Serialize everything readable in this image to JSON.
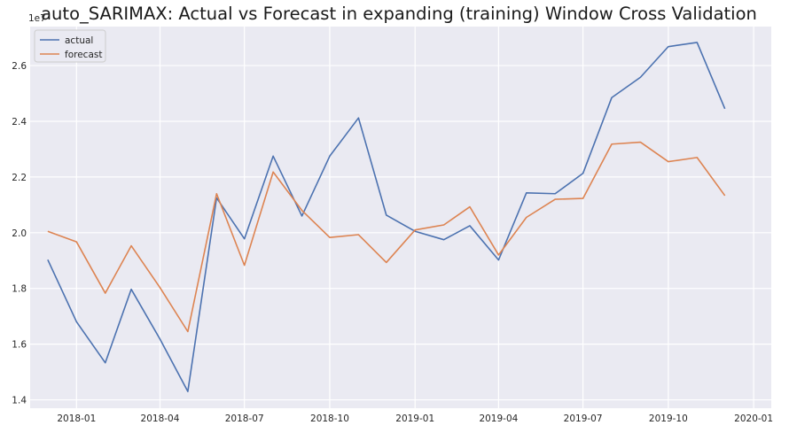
{
  "chart_data": {
    "type": "line",
    "title": "auto_SARIMAX: Actual vs Forecast in expanding (training) Window Cross Validation",
    "xlabel": "",
    "ylabel": "",
    "y_offset_label": "1e7",
    "x": [
      "2017-12-01",
      "2018-01-01",
      "2018-02-01",
      "2018-03-01",
      "2018-04-01",
      "2018-05-01",
      "2018-06-01",
      "2018-07-01",
      "2018-08-01",
      "2018-09-01",
      "2018-10-01",
      "2018-11-01",
      "2018-12-01",
      "2019-01-01",
      "2019-02-01",
      "2019-03-01",
      "2019-04-01",
      "2019-05-01",
      "2019-06-01",
      "2019-07-01",
      "2019-08-01",
      "2019-09-01",
      "2019-10-01",
      "2019-11-01",
      "2019-12-01"
    ],
    "series": [
      {
        "name": "actual",
        "color": "#4c72b0",
        "values": [
          1.903,
          1.68,
          1.533,
          1.797,
          1.618,
          1.43,
          2.125,
          1.978,
          2.275,
          2.06,
          2.275,
          2.412,
          2.063,
          2.005,
          1.975,
          2.025,
          1.902,
          2.143,
          2.14,
          2.213,
          2.485,
          2.558,
          2.668,
          2.683,
          2.445
        ]
      },
      {
        "name": "forecast",
        "color": "#dd8452",
        "values": [
          2.005,
          1.967,
          1.783,
          1.953,
          1.803,
          1.645,
          2.14,
          1.883,
          2.218,
          2.08,
          1.983,
          1.993,
          1.893,
          2.01,
          2.028,
          2.093,
          1.92,
          2.055,
          2.12,
          2.123,
          2.318,
          2.325,
          2.255,
          2.27,
          2.133
        ]
      }
    ],
    "ylim": [
      1.37,
      2.74
    ],
    "y_ticks": [
      "1.4",
      "1.6",
      "1.8",
      "2.0",
      "2.2",
      "2.4",
      "2.6"
    ],
    "y_tick_values": [
      1.4,
      1.6,
      1.8,
      2.0,
      2.2,
      2.4,
      2.6
    ],
    "x_range": [
      "2017-11-12",
      "2020-01-20"
    ],
    "x_ticks": [
      "2018-01",
      "2018-04",
      "2018-07",
      "2018-10",
      "2019-01",
      "2019-04",
      "2019-07",
      "2019-10",
      "2020-01"
    ],
    "x_tick_dates": [
      "2018-01-01",
      "2018-04-01",
      "2018-07-01",
      "2018-10-01",
      "2019-01-01",
      "2019-04-01",
      "2019-07-01",
      "2019-10-01",
      "2020-01-01"
    ],
    "grid": true,
    "legend_position": "top-left",
    "background": "#eaeaf2"
  }
}
